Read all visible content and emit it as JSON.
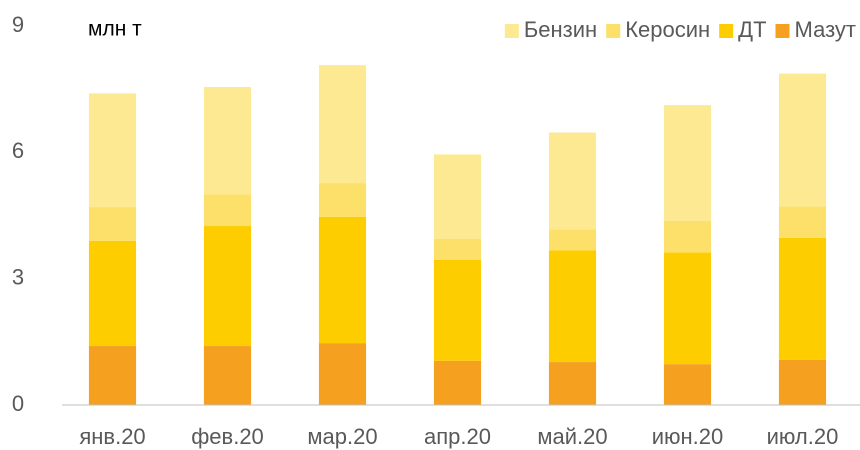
{
  "chart_data": {
    "type": "stacked_bar",
    "ylabel": "млн т",
    "categories": [
      "янв.20",
      "фев.20",
      "мар.20",
      "апр.20",
      "май.20",
      "июн.20",
      "июл.20"
    ],
    "series": [
      {
        "name": "Бензин",
        "color": "#fde992",
        "values": [
          2.7,
          2.55,
          2.8,
          2.0,
          2.3,
          2.75,
          3.15
        ]
      },
      {
        "name": "Керосин",
        "color": "#fde06a",
        "values": [
          0.8,
          0.75,
          0.8,
          0.5,
          0.5,
          0.75,
          0.75
        ]
      },
      {
        "name": "ДТ",
        "color": "#fdcd00",
        "values": [
          2.5,
          2.85,
          3.0,
          2.4,
          2.65,
          2.65,
          2.9
        ]
      },
      {
        "name": "Мазут",
        "color": "#f6a020",
        "values": [
          1.4,
          1.4,
          1.47,
          1.05,
          1.02,
          0.97,
          1.07
        ]
      }
    ],
    "ylim": [
      0,
      9
    ],
    "yticks": [
      0,
      3,
      6,
      9
    ],
    "grid": false,
    "legend": "top-right"
  }
}
